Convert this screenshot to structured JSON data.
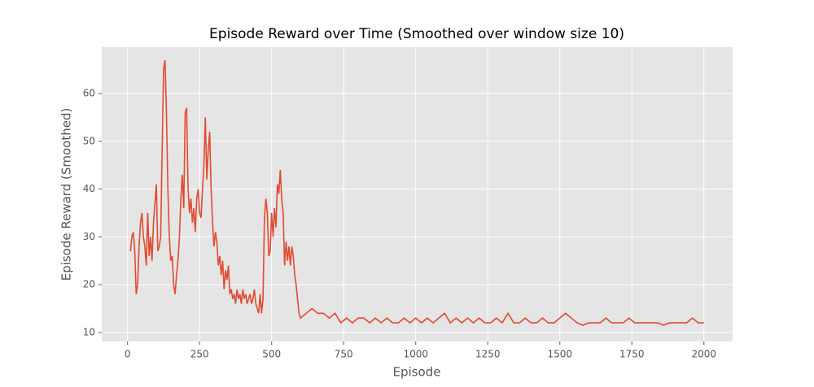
{
  "chart_data": {
    "type": "line",
    "title": "Episode Reward over Time (Smoothed over window size 10)",
    "x_label": "Episode",
    "y_label": "Episode Reward (Smoothed)",
    "x": [
      10,
      15,
      20,
      25,
      30,
      35,
      40,
      45,
      50,
      55,
      60,
      65,
      70,
      75,
      80,
      85,
      90,
      95,
      100,
      105,
      110,
      115,
      120,
      125,
      130,
      135,
      140,
      145,
      150,
      155,
      160,
      165,
      170,
      175,
      180,
      185,
      190,
      195,
      200,
      205,
      210,
      215,
      220,
      225,
      230,
      235,
      240,
      245,
      250,
      255,
      260,
      265,
      270,
      275,
      280,
      285,
      290,
      295,
      300,
      305,
      310,
      315,
      320,
      325,
      330,
      335,
      340,
      345,
      350,
      355,
      360,
      365,
      370,
      375,
      380,
      385,
      390,
      395,
      400,
      405,
      410,
      415,
      420,
      425,
      430,
      435,
      440,
      445,
      450,
      455,
      460,
      465,
      470,
      475,
      480,
      485,
      490,
      495,
      500,
      505,
      510,
      515,
      520,
      525,
      530,
      535,
      540,
      545,
      550,
      555,
      560,
      565,
      570,
      575,
      580,
      585,
      590,
      595,
      600,
      620,
      640,
      660,
      680,
      700,
      720,
      740,
      760,
      780,
      800,
      820,
      840,
      860,
      880,
      900,
      920,
      940,
      960,
      980,
      1000,
      1020,
      1040,
      1060,
      1080,
      1100,
      1120,
      1140,
      1160,
      1180,
      1200,
      1220,
      1240,
      1260,
      1280,
      1300,
      1320,
      1340,
      1360,
      1380,
      1400,
      1420,
      1440,
      1460,
      1480,
      1500,
      1520,
      1540,
      1560,
      1580,
      1600,
      1620,
      1640,
      1660,
      1680,
      1700,
      1720,
      1740,
      1760,
      1780,
      1800,
      1820,
      1840,
      1860,
      1880,
      1900,
      1920,
      1940,
      1960,
      1980,
      2000
    ],
    "series": [
      {
        "name": "Episode Reward (Smoothed)",
        "color": "#e24a33",
        "values": [
          27,
          30,
          31,
          27,
          18,
          20,
          28,
          33,
          35,
          30,
          28,
          24,
          35,
          26,
          30,
          25,
          33,
          37,
          41,
          27,
          28,
          30,
          48,
          65,
          67,
          56,
          40,
          30,
          25,
          26,
          20,
          18,
          22,
          25,
          30,
          38,
          43,
          36,
          56,
          57,
          40,
          35,
          38,
          33,
          36,
          31,
          38,
          40,
          35,
          34,
          40,
          45,
          55,
          42,
          48,
          52,
          40,
          33,
          28,
          31,
          29,
          24,
          26,
          22,
          25,
          19,
          23,
          21,
          24,
          18,
          19,
          17,
          18,
          16,
          19,
          17,
          18,
          16,
          19,
          17,
          18,
          16,
          17,
          18,
          16,
          17,
          19,
          16,
          15,
          14,
          18,
          14,
          17,
          34,
          38,
          35,
          26,
          27,
          35,
          30,
          36,
          32,
          41,
          39,
          44,
          38,
          35,
          24,
          29,
          25,
          28,
          24,
          28,
          26,
          22,
          20,
          17,
          14,
          13,
          14,
          15,
          14,
          14,
          13,
          14,
          12,
          13,
          12,
          13,
          13,
          12,
          13,
          12,
          13,
          12,
          12,
          13,
          12,
          13,
          12,
          13,
          12,
          13,
          14,
          12,
          13,
          12,
          13,
          12,
          13,
          12,
          12,
          13,
          12,
          14,
          12,
          12,
          13,
          12,
          12,
          13,
          12,
          12,
          13,
          14,
          13,
          12,
          11.5,
          12,
          12,
          12,
          13,
          12,
          12,
          12,
          13,
          12,
          12,
          12,
          12,
          12,
          11.5,
          12,
          12,
          12,
          12,
          13,
          12,
          12
        ]
      }
    ],
    "xlim": [
      -89.5,
      2099.5
    ],
    "xticks": [
      0,
      250,
      500,
      750,
      1000,
      1250,
      1500,
      1750,
      2000
    ],
    "ylim": [
      8.1,
      69.7
    ],
    "yticks": [
      10,
      20,
      30,
      40,
      50,
      60
    ],
    "grid": true
  }
}
